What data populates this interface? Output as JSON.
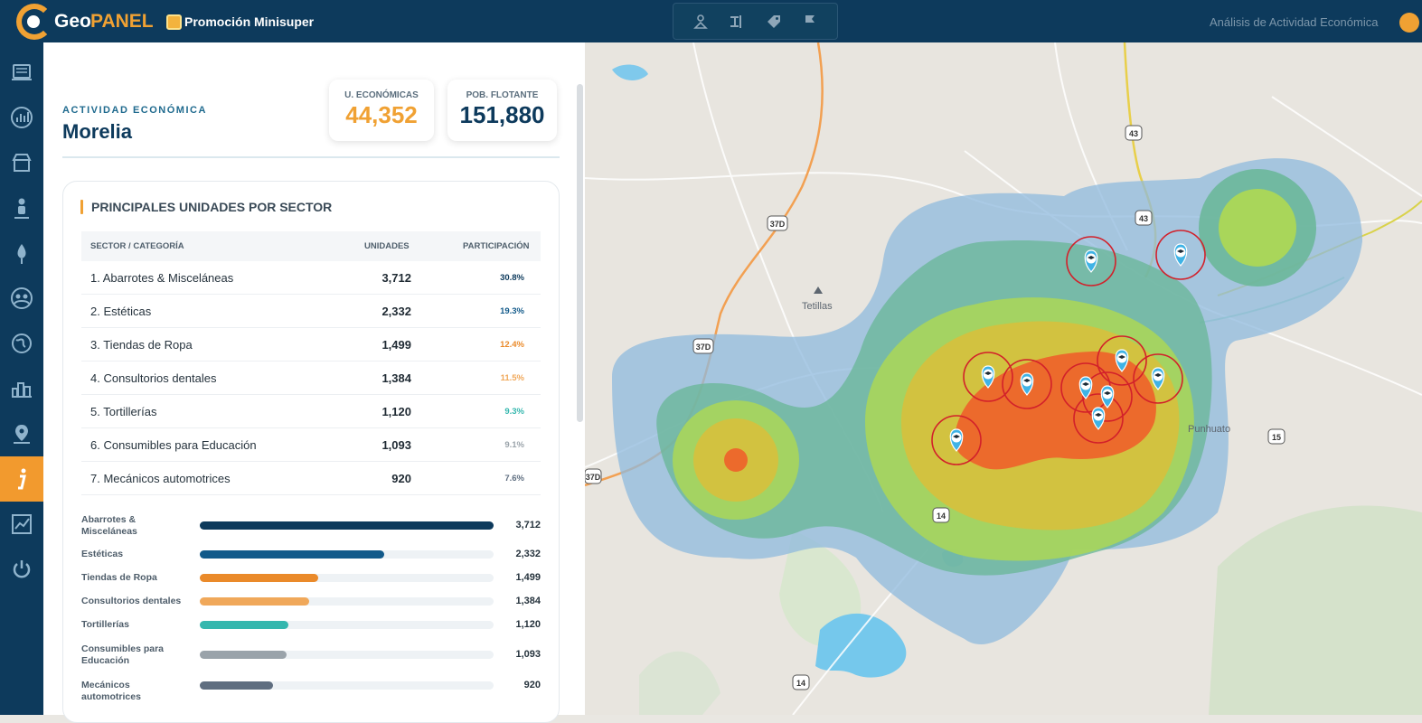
{
  "header": {
    "logo_geo": "Geo",
    "logo_panel": "PANEL",
    "project_title": "Promoción Minisuper",
    "right_title": "Análisis de Actividad Económica",
    "toolbar": [
      "population-tool-icon",
      "route-tool-icon",
      "tag-tool-icon",
      "flag-tool-icon"
    ]
  },
  "sidebar": {
    "items": [
      {
        "icon": "layers-icon"
      },
      {
        "icon": "chart-icon"
      },
      {
        "icon": "store-icon"
      },
      {
        "icon": "person-icon"
      },
      {
        "icon": "location-drop-icon"
      },
      {
        "icon": "group-icon"
      },
      {
        "icon": "world-icon"
      },
      {
        "icon": "city-icon"
      },
      {
        "icon": "map-pin-icon"
      },
      {
        "icon": "info-icon",
        "active": true
      },
      {
        "icon": "trend-icon"
      },
      {
        "icon": "power-icon"
      }
    ]
  },
  "panel": {
    "kicker": "ACTIVIDAD ECONÓMICA",
    "city": "Morelia",
    "kpis": [
      {
        "label": "U. ECONÓMICAS",
        "value": "44,352",
        "color": "#f0a133"
      },
      {
        "label": "POB. FLOTANTE",
        "value": "151,880",
        "color": "#0d3a5c"
      }
    ],
    "card_title": "PRINCIPALES UNIDADES POR SECTOR",
    "table_headers": [
      "SECTOR / CATEGORÍA",
      "UNIDADES",
      "PARTICIPACIÓN"
    ],
    "rows": [
      {
        "sector": "1. Abarrotes & Misceláneas",
        "units": "3,712",
        "share": "30.8%",
        "share_color": "#0d3a5c"
      },
      {
        "sector": "2. Estéticas",
        "units": "2,332",
        "share": "19.3%",
        "share_color": "#125a8a"
      },
      {
        "sector": "3. Tiendas de Ropa",
        "units": "1,499",
        "share": "12.4%",
        "share_color": "#ea8a2a"
      },
      {
        "sector": "4. Consultorios dentales",
        "units": "1,384",
        "share": "11.5%",
        "share_color": "#f0a85a"
      },
      {
        "sector": "5. Tortillerías",
        "units": "1,120",
        "share": "9.3%",
        "share_color": "#35b7ae"
      },
      {
        "sector": "6. Consumibles para Educación",
        "units": "1,093",
        "share": "9.1%",
        "share_color": "#9aa3aa"
      },
      {
        "sector": "7. Mecánicos automotrices",
        "units": "920",
        "share": "7.6%",
        "share_color": "#5f6e80"
      }
    ],
    "bars": [
      {
        "label": "Abarrotes & Misceláneas",
        "value": "3,712",
        "fraction": 1.0,
        "color": "#0d3a5c"
      },
      {
        "label": "Estéticas",
        "value": "2,332",
        "fraction": 0.628,
        "color": "#125a8a"
      },
      {
        "label": "Tiendas de Ropa",
        "value": "1,499",
        "fraction": 0.404,
        "color": "#ea8a2a"
      },
      {
        "label": "Consultorios dentales",
        "value": "1,384",
        "fraction": 0.373,
        "color": "#f0a85a"
      },
      {
        "label": "Tortillerías",
        "value": "1,120",
        "fraction": 0.302,
        "color": "#35b7ae"
      },
      {
        "label": "Consumibles para Educación",
        "value": "1,093",
        "fraction": 0.294,
        "color": "#9aa3aa"
      },
      {
        "label": "Mecánicos automotrices",
        "value": "920",
        "fraction": 0.248,
        "color": "#5f6e80"
      }
    ]
  },
  "map": {
    "places": [
      "Tetillas",
      "Punhuato"
    ],
    "road_shields": [
      "37D",
      "37D",
      "37D",
      "43",
      "43",
      "14",
      "14",
      "15"
    ],
    "marker_icon": "school-icon",
    "marker_count": 11
  }
}
